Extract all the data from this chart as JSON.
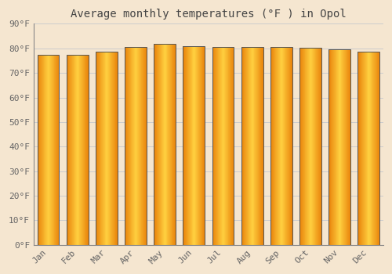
{
  "title": "Average monthly temperatures (°F ) in Opol",
  "months": [
    "Jan",
    "Feb",
    "Mar",
    "Apr",
    "May",
    "Jun",
    "Jul",
    "Aug",
    "Sep",
    "Oct",
    "Nov",
    "Dec"
  ],
  "values": [
    77.5,
    77.5,
    78.8,
    80.6,
    82.0,
    81.0,
    80.6,
    80.5,
    80.5,
    80.2,
    79.5,
    78.8
  ],
  "ylim": [
    0,
    90
  ],
  "yticks": [
    0,
    10,
    20,
    30,
    40,
    50,
    60,
    70,
    80,
    90
  ],
  "ytick_labels": [
    "0°F",
    "10°F",
    "20°F",
    "30°F",
    "40°F",
    "50°F",
    "60°F",
    "70°F",
    "80°F",
    "90°F"
  ],
  "bar_color_left": "#E8820A",
  "bar_color_center": "#FFD040",
  "bar_color_right": "#E8820A",
  "bar_edge_color": "#555555",
  "background_color": "#F5E6D0",
  "plot_bg_color": "#F5E6D0",
  "grid_color": "#CCCCCC",
  "title_fontsize": 10,
  "tick_fontsize": 8,
  "title_color": "#444444",
  "tick_color": "#666666"
}
